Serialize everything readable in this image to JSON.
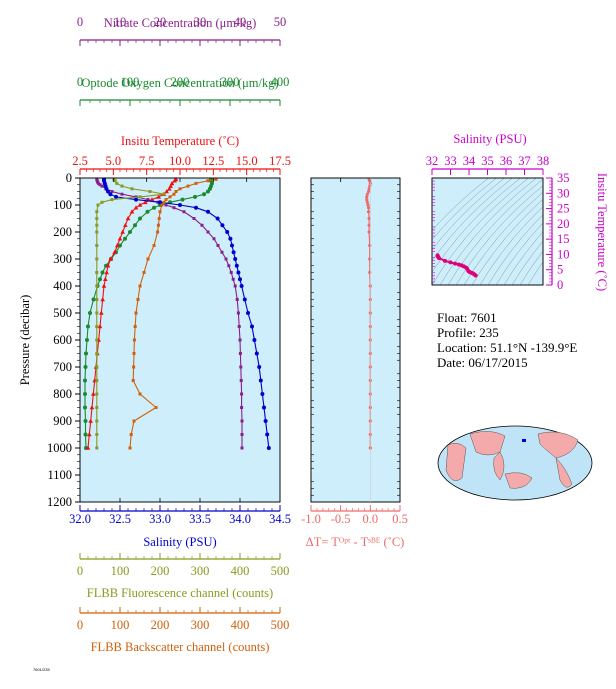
{
  "info": {
    "float": "Float:  7601",
    "profile": "Profile:  235",
    "location": "Location:  51.1°N  -139.9°E",
    "date": "Date:  06/17/2015"
  },
  "footer_id": "7601/235",
  "colors": {
    "nitrate": "#8b1f8b",
    "oxygen": "#1a8a2e",
    "temperature": "#ee1111",
    "salinity": "#0000cc",
    "fluorescence": "#8a9a1e",
    "backscatter": "#d2600a",
    "delta_t": "#f06a6a",
    "ts_temp_axis": "#cc00cc",
    "plot_bg": "#cdeefa"
  },
  "chart_data": [
    {
      "type": "line",
      "panel": "profile",
      "ylabel": "Pressure (decibar)",
      "ylim": [
        1200,
        0
      ],
      "yticks": [
        0,
        100,
        200,
        300,
        400,
        500,
        600,
        700,
        800,
        900,
        1000,
        1100,
        1200
      ],
      "axes": {
        "nitrate": {
          "label": "Nitrate Concentration (μm/kg)",
          "range": [
            0,
            50
          ],
          "ticks": [
            0,
            10,
            20,
            30,
            40,
            50
          ]
        },
        "oxygen": {
          "label": "Optode Oxygen Concentration (μm/kg)",
          "range": [
            0,
            400
          ],
          "ticks": [
            0,
            100,
            200,
            300,
            400
          ]
        },
        "temperature": {
          "label": "Insitu Temperature (˚C)",
          "range": [
            2.5,
            17.5
          ],
          "ticks": [
            2.5,
            5.0,
            7.5,
            10.0,
            12.5,
            15.0,
            17.5
          ]
        },
        "salinity": {
          "label": "Salinity (PSU)",
          "range": [
            32.0,
            34.5
          ],
          "ticks": [
            32.0,
            32.5,
            33.0,
            33.5,
            34.0,
            34.5
          ]
        },
        "fluorescence": {
          "label": "FLBB Fluorescence channel (counts)",
          "range": [
            0,
            500
          ],
          "ticks": [
            0,
            100,
            200,
            300,
            400,
            500
          ]
        },
        "backscatter": {
          "label": "FLBB Backscatter channel (counts)",
          "range": [
            0,
            500
          ],
          "ticks": [
            0,
            100,
            200,
            300,
            400,
            500
          ]
        }
      },
      "series": [
        {
          "name": "Nitrate",
          "axis": "nitrate",
          "p": [
            5,
            10,
            15,
            20,
            25,
            30,
            40,
            50,
            60,
            70,
            80,
            90,
            100,
            110,
            125,
            150,
            175,
            200,
            225,
            250,
            275,
            300,
            325,
            350,
            375,
            400,
            450,
            500,
            550,
            600,
            650,
            700,
            750,
            800,
            850,
            900,
            950,
            1000
          ],
          "values": [
            4.2,
            4.3,
            4.4,
            4.6,
            5.0,
            5.5,
            6.5,
            8.0,
            10.5,
            14.0,
            17.0,
            19.5,
            21.5,
            23.5,
            26.0,
            28.5,
            30.5,
            32.0,
            33.5,
            34.5,
            35.5,
            36.5,
            37.2,
            37.8,
            38.3,
            38.8,
            39.3,
            39.6,
            39.8,
            40.0,
            40.1,
            40.2,
            40.3,
            40.4,
            40.4,
            40.5,
            40.5,
            40.5
          ]
        },
        {
          "name": "Oxygen",
          "axis": "oxygen",
          "p": [
            5,
            10,
            20,
            30,
            40,
            50,
            60,
            70,
            80,
            90,
            100,
            110,
            125,
            150,
            175,
            200,
            225,
            250,
            275,
            300,
            325,
            350,
            375,
            400,
            450,
            500,
            550,
            600,
            650,
            700,
            750,
            800,
            850,
            900,
            950,
            1000
          ],
          "values": [
            262,
            262,
            264,
            262,
            260,
            256,
            248,
            230,
            205,
            180,
            160,
            148,
            135,
            120,
            110,
            100,
            90,
            80,
            72,
            62,
            52,
            45,
            40,
            35,
            27,
            20,
            16,
            14,
            12,
            11,
            10,
            10,
            10,
            11,
            11,
            12
          ]
        },
        {
          "name": "Temperature",
          "axis": "temperature",
          "p": [
            5,
            10,
            20,
            30,
            40,
            50,
            60,
            70,
            80,
            90,
            100,
            110,
            125,
            150,
            175,
            200,
            225,
            250,
            275,
            300,
            325,
            350,
            375,
            400,
            450,
            500,
            550,
            600,
            650,
            700,
            750,
            800,
            850,
            900,
            950,
            1000
          ],
          "values": [
            9.7,
            9.6,
            9.4,
            9.3,
            9.2,
            9.0,
            8.8,
            8.4,
            7.9,
            7.4,
            7.0,
            6.7,
            6.4,
            6.1,
            5.9,
            5.7,
            5.5,
            5.3,
            5.1,
            4.8,
            4.6,
            4.5,
            4.4,
            4.3,
            4.2,
            4.1,
            4.0,
            3.9,
            3.8,
            3.7,
            3.6,
            3.5,
            3.4,
            3.3,
            3.2,
            3.1
          ]
        },
        {
          "name": "Salinity",
          "axis": "salinity",
          "p": [
            5,
            10,
            20,
            30,
            40,
            50,
            60,
            70,
            80,
            90,
            100,
            110,
            125,
            150,
            175,
            200,
            225,
            250,
            275,
            300,
            325,
            350,
            375,
            400,
            450,
            500,
            550,
            600,
            650,
            700,
            750,
            800,
            850,
            900,
            950,
            1000
          ],
          "values": [
            32.3,
            32.3,
            32.31,
            32.32,
            32.33,
            32.35,
            32.38,
            32.45,
            32.7,
            33.0,
            33.25,
            33.45,
            33.6,
            33.72,
            33.78,
            33.84,
            33.88,
            33.9,
            33.92,
            33.94,
            33.96,
            33.98,
            34.0,
            34.02,
            34.06,
            34.1,
            34.15,
            34.18,
            34.21,
            34.24,
            34.26,
            34.28,
            34.3,
            34.32,
            34.34,
            34.36
          ]
        },
        {
          "name": "Fluorescence",
          "axis": "fluorescence",
          "p": [
            5,
            10,
            20,
            30,
            40,
            50,
            60,
            70,
            80,
            90,
            100,
            125,
            150,
            175,
            200,
            250,
            300,
            350,
            400,
            450,
            500,
            550,
            600,
            650,
            700,
            750,
            800,
            850,
            900,
            950,
            1000
          ],
          "values": [
            85,
            88,
            92,
            105,
            130,
            175,
            210,
            150,
            80,
            55,
            45,
            42,
            42,
            42,
            42,
            42,
            42,
            42,
            42,
            42,
            42,
            42,
            42,
            42,
            42,
            42,
            42,
            42,
            42,
            42,
            42
          ]
        },
        {
          "name": "Backscatter",
          "axis": "backscatter",
          "p": [
            5,
            10,
            20,
            30,
            40,
            50,
            60,
            70,
            80,
            90,
            100,
            125,
            150,
            175,
            200,
            250,
            300,
            350,
            400,
            450,
            500,
            550,
            600,
            650,
            700,
            750,
            800,
            850,
            900,
            950,
            1000
          ],
          "values": [
            340,
            320,
            290,
            270,
            250,
            240,
            235,
            225,
            215,
            210,
            205,
            200,
            198,
            196,
            194,
            185,
            170,
            160,
            150,
            145,
            140,
            138,
            136,
            135,
            134,
            133,
            150,
            190,
            135,
            128,
            125
          ]
        }
      ]
    },
    {
      "type": "line",
      "panel": "delta_t",
      "xlabel": "ΔT= Tᴼᵖᵗ - Tˢᴮᴱ (˚C)",
      "xlim": [
        -1.0,
        0.5
      ],
      "xticks": [
        -1.0,
        -0.5,
        0.0,
        0.5
      ],
      "series": [
        {
          "name": "DeltaT",
          "p": [
            5,
            10,
            20,
            30,
            40,
            50,
            60,
            70,
            80,
            90,
            100,
            110,
            125,
            150,
            175,
            200,
            250,
            300,
            350,
            400,
            450,
            500,
            550,
            600,
            650,
            700,
            750,
            800,
            850,
            900,
            950,
            1000
          ],
          "values": [
            -0.02,
            -0.01,
            0.0,
            -0.01,
            -0.02,
            -0.03,
            -0.05,
            -0.06,
            -0.06,
            -0.05,
            -0.04,
            -0.03,
            -0.03,
            -0.02,
            -0.02,
            -0.02,
            -0.01,
            -0.01,
            -0.01,
            0.0,
            0.0,
            0.0,
            0.0,
            0.0,
            0.0,
            0.0,
            0.0,
            0.0,
            0.0,
            0.0,
            0.0,
            0.0
          ]
        }
      ]
    },
    {
      "type": "scatter",
      "panel": "ts_diagram",
      "title": "Salinity (PSU)",
      "xlabel": "Salinity (PSU)",
      "ylabel": "Insitu Temperature (˚C)",
      "xlim": [
        32,
        38
      ],
      "ylim": [
        0,
        35
      ],
      "xticks": [
        32,
        33,
        34,
        35,
        36,
        37,
        38
      ],
      "yticks": [
        0,
        5,
        10,
        15,
        20,
        25,
        30,
        35
      ],
      "points": {
        "salinity": [
          32.3,
          32.31,
          32.33,
          32.38,
          32.7,
          33.0,
          33.25,
          33.45,
          33.6,
          33.72,
          33.84,
          33.9,
          33.96,
          34.02,
          34.1,
          34.18,
          34.24,
          34.3,
          34.36
        ],
        "temperature": [
          9.7,
          9.4,
          9.2,
          8.8,
          7.9,
          7.4,
          7.0,
          6.7,
          6.4,
          6.1,
          5.7,
          5.3,
          4.6,
          4.3,
          4.1,
          3.9,
          3.7,
          3.4,
          3.1
        ]
      }
    }
  ]
}
